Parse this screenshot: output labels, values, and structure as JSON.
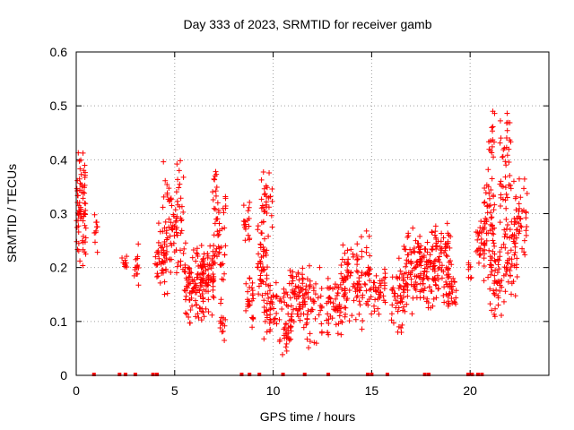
{
  "chart_data": {
    "type": "scatter",
    "title": "Day 333 of 2023, SRMTID for receiver gamb",
    "xlabel": "GPS time / hours",
    "ylabel": "SRMTID / TECUs",
    "xlim": [
      0,
      24
    ],
    "ylim": [
      0,
      0.6
    ],
    "xticks": [
      0,
      5,
      10,
      15,
      20
    ],
    "xtick_labels": [
      "0",
      "5",
      "10",
      "15",
      "20"
    ],
    "yticks": [
      0,
      0.1,
      0.2,
      0.3,
      0.4,
      0.5,
      0.6
    ],
    "ytick_labels": [
      "0",
      "0.1",
      "0.2",
      "0.3",
      "0.4",
      "0.5",
      "0.6"
    ],
    "grid": true,
    "series": [
      {
        "name": "SRMTID",
        "color": "#ff0000",
        "marker": "plus",
        "clusters": [
          {
            "x": [
              0.0,
              0.5
            ],
            "y": [
              0.2,
              0.42
            ],
            "n": 70,
            "seed": 1
          },
          {
            "x": [
              0.9,
              1.1
            ],
            "y": [
              0.2,
              0.32
            ],
            "n": 10,
            "seed": 2
          },
          {
            "x": [
              2.3,
              2.6
            ],
            "y": [
              0.17,
              0.23
            ],
            "n": 10,
            "seed": 3
          },
          {
            "x": [
              2.9,
              3.2
            ],
            "y": [
              0.15,
              0.25
            ],
            "n": 14,
            "seed": 4
          },
          {
            "x": [
              4.0,
              4.6
            ],
            "y": [
              0.14,
              0.3
            ],
            "n": 40,
            "seed": 5
          },
          {
            "x": [
              4.4,
              5.5
            ],
            "y": [
              0.15,
              0.42
            ],
            "n": 90,
            "seed": 6
          },
          {
            "x": [
              5.5,
              6.5
            ],
            "y": [
              0.09,
              0.26
            ],
            "n": 90,
            "seed": 7
          },
          {
            "x": [
              6.3,
              7.0
            ],
            "y": [
              0.1,
              0.26
            ],
            "n": 60,
            "seed": 8
          },
          {
            "x": [
              6.9,
              7.6
            ],
            "y": [
              0.13,
              0.4
            ],
            "n": 60,
            "seed": 9
          },
          {
            "x": [
              7.3,
              7.6
            ],
            "y": [
              0.05,
              0.15
            ],
            "n": 14,
            "seed": 10
          },
          {
            "x": [
              8.5,
              8.8
            ],
            "y": [
              0.22,
              0.33
            ],
            "n": 18,
            "seed": 11
          },
          {
            "x": [
              8.6,
              9.0
            ],
            "y": [
              0.07,
              0.2
            ],
            "n": 25,
            "seed": 12
          },
          {
            "x": [
              9.2,
              9.7
            ],
            "y": [
              0.12,
              0.3
            ],
            "n": 40,
            "seed": 13
          },
          {
            "x": [
              9.4,
              10.0
            ],
            "y": [
              0.25,
              0.39
            ],
            "n": 30,
            "seed": 14
          },
          {
            "x": [
              9.5,
              10.2
            ],
            "y": [
              0.05,
              0.22
            ],
            "n": 45,
            "seed": 15
          },
          {
            "x": [
              10.3,
              11.0
            ],
            "y": [
              0.0,
              0.2
            ],
            "n": 45,
            "seed": 16
          },
          {
            "x": [
              10.8,
              11.6
            ],
            "y": [
              0.08,
              0.23
            ],
            "n": 55,
            "seed": 17
          },
          {
            "x": [
              11.5,
              12.5
            ],
            "y": [
              0.04,
              0.22
            ],
            "n": 55,
            "seed": 18
          },
          {
            "x": [
              12.7,
              13.5
            ],
            "y": [
              0.04,
              0.2
            ],
            "n": 50,
            "seed": 19
          },
          {
            "x": [
              13.4,
              14.3
            ],
            "y": [
              0.09,
              0.26
            ],
            "n": 60,
            "seed": 20
          },
          {
            "x": [
              14.2,
              15.0
            ],
            "y": [
              0.08,
              0.28
            ],
            "n": 55,
            "seed": 21
          },
          {
            "x": [
              15.0,
              15.7
            ],
            "y": [
              0.1,
              0.21
            ],
            "n": 35,
            "seed": 22
          },
          {
            "x": [
              16.0,
              16.7
            ],
            "y": [
              0.07,
              0.22
            ],
            "n": 45,
            "seed": 23
          },
          {
            "x": [
              16.6,
              17.5
            ],
            "y": [
              0.1,
              0.28
            ],
            "n": 70,
            "seed": 24
          },
          {
            "x": [
              17.4,
              18.3
            ],
            "y": [
              0.12,
              0.29
            ],
            "n": 75,
            "seed": 25
          },
          {
            "x": [
              18.1,
              19.0
            ],
            "y": [
              0.12,
              0.29
            ],
            "n": 70,
            "seed": 26
          },
          {
            "x": [
              18.8,
              19.3
            ],
            "y": [
              0.11,
              0.21
            ],
            "n": 30,
            "seed": 27
          },
          {
            "x": [
              19.8,
              20.1
            ],
            "y": [
              0.17,
              0.22
            ],
            "n": 8,
            "seed": 28
          },
          {
            "x": [
              20.3,
              20.8
            ],
            "y": [
              0.2,
              0.3
            ],
            "n": 30,
            "seed": 29
          },
          {
            "x": [
              20.7,
              21.3
            ],
            "y": [
              0.15,
              0.4
            ],
            "n": 55,
            "seed": 30
          },
          {
            "x": [
              20.9,
              21.3
            ],
            "y": [
              0.38,
              0.5
            ],
            "n": 14,
            "seed": 31
          },
          {
            "x": [
              21.0,
              21.6
            ],
            "y": [
              0.07,
              0.25
            ],
            "n": 40,
            "seed": 32
          },
          {
            "x": [
              21.5,
              22.1
            ],
            "y": [
              0.2,
              0.51
            ],
            "n": 50,
            "seed": 33
          },
          {
            "x": [
              21.7,
              22.4
            ],
            "y": [
              0.12,
              0.3
            ],
            "n": 45,
            "seed": 34
          },
          {
            "x": [
              22.2,
              22.9
            ],
            "y": [
              0.2,
              0.39
            ],
            "n": 40,
            "seed": 35
          }
        ],
        "zero_points_x": [
          0.9,
          2.2,
          2.5,
          3.0,
          3.9,
          4.1,
          8.4,
          8.8,
          9.3,
          10.5,
          11.6,
          12.8,
          14.8,
          15.0,
          15.8,
          17.7,
          17.9,
          19.9,
          20.1,
          20.4,
          20.6
        ]
      }
    ]
  }
}
